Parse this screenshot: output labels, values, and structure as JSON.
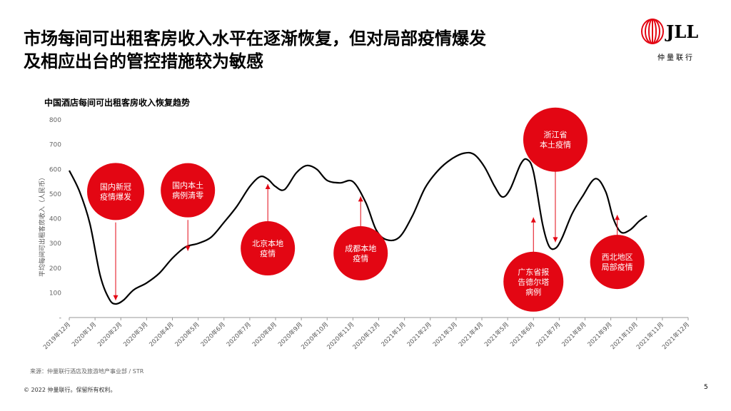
{
  "page": {
    "title_line1": "市场每间可出租客房收入水平在逐渐恢复，但对局部疫情爆发",
    "title_line2": "及相应出台的管控措施较为敏感",
    "logo_text": "JLL",
    "logo_sub": "仲量联行",
    "source": "来源：仲量联行酒店及旅游地产事业部 / STR",
    "copyright": "© 2022 仲量联行。保留所有权利。",
    "page_number": "5",
    "colors": {
      "accent": "#e30613",
      "line": "#000000",
      "axis": "#999999",
      "text": "#333333"
    }
  },
  "chart_data": {
    "type": "line",
    "title": "中国酒店每间可出租客房收入恢复趋势",
    "ylabel": "平均每间可出租客房收入（人民币）",
    "xlabel": "",
    "ylim": [
      0,
      800
    ],
    "yticks": [
      "-",
      "100",
      "200",
      "300",
      "400",
      "500",
      "600",
      "700",
      "800"
    ],
    "categories": [
      "2019年12月",
      "2020年1月",
      "2020年2月",
      "2020年3月",
      "2020年4月",
      "2020年5月",
      "2020年6月",
      "2020年7月",
      "2020年8月",
      "2020年9月",
      "2020年10月",
      "2020年11月",
      "2020年12月",
      "2021年1月",
      "2021年2月",
      "2021年3月",
      "2021年4月",
      "2021年5月",
      "2021年6月",
      "2021年7月",
      "2021年8月",
      "2021年9月",
      "2021年10月",
      "2021年11月",
      "2021年12月"
    ],
    "curve": [
      {
        "x": 0,
        "y": 595
      },
      {
        "x": 0.4,
        "y": 510
      },
      {
        "x": 0.8,
        "y": 380
      },
      {
        "x": 1.2,
        "y": 170
      },
      {
        "x": 1.55,
        "y": 75
      },
      {
        "x": 1.8,
        "y": 55
      },
      {
        "x": 2.1,
        "y": 70
      },
      {
        "x": 2.5,
        "y": 112
      },
      {
        "x": 3.0,
        "y": 140
      },
      {
        "x": 3.5,
        "y": 180
      },
      {
        "x": 4.0,
        "y": 240
      },
      {
        "x": 4.5,
        "y": 285
      },
      {
        "x": 5.0,
        "y": 300
      },
      {
        "x": 5.5,
        "y": 325
      },
      {
        "x": 6.0,
        "y": 385
      },
      {
        "x": 6.5,
        "y": 450
      },
      {
        "x": 7.0,
        "y": 530
      },
      {
        "x": 7.4,
        "y": 570
      },
      {
        "x": 7.7,
        "y": 560
      },
      {
        "x": 8.0,
        "y": 530
      },
      {
        "x": 8.35,
        "y": 518
      },
      {
        "x": 8.8,
        "y": 585
      },
      {
        "x": 9.2,
        "y": 615
      },
      {
        "x": 9.6,
        "y": 600
      },
      {
        "x": 10.0,
        "y": 555
      },
      {
        "x": 10.5,
        "y": 545
      },
      {
        "x": 11.0,
        "y": 550
      },
      {
        "x": 11.5,
        "y": 465
      },
      {
        "x": 11.9,
        "y": 355
      },
      {
        "x": 12.3,
        "y": 315
      },
      {
        "x": 12.8,
        "y": 325
      },
      {
        "x": 13.3,
        "y": 410
      },
      {
        "x": 13.8,
        "y": 525
      },
      {
        "x": 14.3,
        "y": 595
      },
      {
        "x": 14.8,
        "y": 640
      },
      {
        "x": 15.3,
        "y": 665
      },
      {
        "x": 15.7,
        "y": 660
      },
      {
        "x": 16.1,
        "y": 610
      },
      {
        "x": 16.5,
        "y": 530
      },
      {
        "x": 16.8,
        "y": 488
      },
      {
        "x": 17.1,
        "y": 520
      },
      {
        "x": 17.5,
        "y": 620
      },
      {
        "x": 17.75,
        "y": 640
      },
      {
        "x": 18.0,
        "y": 590
      },
      {
        "x": 18.35,
        "y": 380
      },
      {
        "x": 18.6,
        "y": 290
      },
      {
        "x": 18.85,
        "y": 280
      },
      {
        "x": 19.1,
        "y": 320
      },
      {
        "x": 19.5,
        "y": 420
      },
      {
        "x": 19.9,
        "y": 490
      },
      {
        "x": 20.4,
        "y": 562
      },
      {
        "x": 20.8,
        "y": 510
      },
      {
        "x": 21.1,
        "y": 400
      },
      {
        "x": 21.4,
        "y": 345
      },
      {
        "x": 21.75,
        "y": 355
      },
      {
        "x": 22.1,
        "y": 390
      },
      {
        "x": 22.4,
        "y": 412
      }
    ],
    "annotations": [
      {
        "label": [
          "国内新冠",
          "疫情爆发"
        ],
        "x": 1.8,
        "cy": 510,
        "r": 40,
        "arrow_from": 385,
        "arrow_to": 70,
        "dir": "down"
      },
      {
        "label": [
          "国内本土",
          "病例清零"
        ],
        "x": 4.6,
        "cy": 515,
        "r": 38,
        "arrow_from": 395,
        "arrow_to": 270,
        "dir": "down"
      },
      {
        "label": [
          "北京本地",
          "疫情"
        ],
        "x": 7.7,
        "cy": 280,
        "r": 38,
        "arrow_from": 380,
        "arrow_to": 540,
        "dir": "up"
      },
      {
        "label": [
          "成都本地",
          "疫情"
        ],
        "x": 11.3,
        "cy": 260,
        "r": 38,
        "arrow_from": 360,
        "arrow_to": 490,
        "dir": "up"
      },
      {
        "label": [
          "浙江省",
          "本土疫情"
        ],
        "x": 18.85,
        "cy": 720,
        "r": 45,
        "arrow_from": 625,
        "arrow_to": 305,
        "dir": "down"
      },
      {
        "label": [
          "广东省报",
          "告德尔塔",
          "病例"
        ],
        "x": 18.0,
        "cy": 145,
        "r": 42,
        "arrow_from": 250,
        "arrow_to": 405,
        "dir": "up"
      },
      {
        "label": [
          "西北地区",
          "局部疫情"
        ],
        "x": 21.25,
        "cy": 225,
        "r": 38,
        "arrow_from": 325,
        "arrow_to": 415,
        "dir": "up"
      }
    ]
  }
}
